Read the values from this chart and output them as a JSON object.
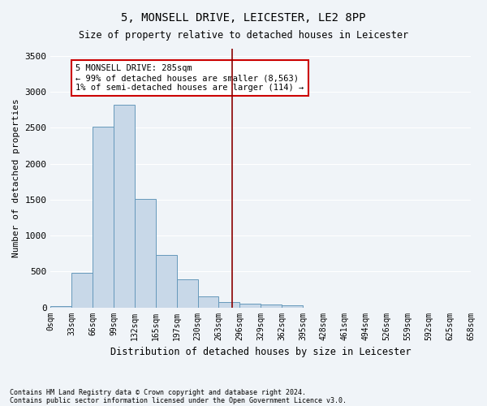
{
  "title": "5, MONSELL DRIVE, LEICESTER, LE2 8PP",
  "subtitle": "Size of property relative to detached houses in Leicester",
  "xlabel": "Distribution of detached houses by size in Leicester",
  "ylabel": "Number of detached properties",
  "footnote1": "Contains HM Land Registry data © Crown copyright and database right 2024.",
  "footnote2": "Contains public sector information licensed under the Open Government Licence v3.0.",
  "bin_labels": [
    "0sqm",
    "33sqm",
    "66sqm",
    "99sqm",
    "132sqm",
    "165sqm",
    "197sqm",
    "230sqm",
    "263sqm",
    "296sqm",
    "329sqm",
    "362sqm",
    "395sqm",
    "428sqm",
    "461sqm",
    "494sqm",
    "526sqm",
    "559sqm",
    "592sqm",
    "625sqm",
    "658sqm"
  ],
  "bar_values": [
    20,
    480,
    2510,
    2820,
    1510,
    735,
    390,
    155,
    70,
    55,
    45,
    25,
    0,
    0,
    0,
    0,
    0,
    0,
    0,
    0
  ],
  "bar_color": "#c8d8e8",
  "bar_edge_color": "#6699bb",
  "vline_x": 8.636,
  "vline_color": "#8b0000",
  "ylim": [
    0,
    3600
  ],
  "yticks": [
    0,
    500,
    1000,
    1500,
    2000,
    2500,
    3000,
    3500
  ],
  "annotation_title": "5 MONSELL DRIVE: 285sqm",
  "annotation_line1": "← 99% of detached houses are smaller (8,563)",
  "annotation_line2": "1% of semi-detached houses are larger (114) →",
  "annotation_box_color": "#ffffff",
  "annotation_box_edge": "#cc0000",
  "bg_color": "#f0f4f8",
  "grid_color": "#ffffff"
}
